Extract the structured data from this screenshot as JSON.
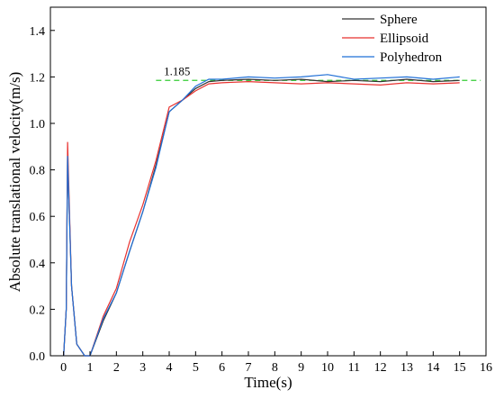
{
  "chart_data": {
    "type": "line",
    "xlabel": "Time(s)",
    "ylabel": "Absolute translational velocity(m/s)",
    "xlim": [
      -0.5,
      16
    ],
    "ylim": [
      0,
      1.5
    ],
    "xticks": [
      "0",
      "1",
      "2",
      "3",
      "4",
      "5",
      "6",
      "7",
      "8",
      "9",
      "10",
      "11",
      "12",
      "13",
      "14",
      "15",
      "16"
    ],
    "yticks": [
      "0.0",
      "0.2",
      "0.4",
      "0.6",
      "0.8",
      "1.0",
      "1.2",
      "1.4"
    ],
    "legend_position": "top-right",
    "reference_line": {
      "y": 1.185,
      "label": "1.185",
      "color": "#33cc33",
      "style": "dashed"
    },
    "series": [
      {
        "name": "Sphere",
        "color": "#333333",
        "x": [
          0.0,
          0.1,
          0.15,
          0.3,
          0.5,
          0.8,
          1.0,
          1.5,
          2.0,
          2.5,
          3.0,
          3.5,
          4.0,
          4.5,
          5.0,
          5.5,
          6.0,
          7.0,
          8.0,
          9.0,
          10.0,
          11.0,
          12.0,
          13.0,
          14.0,
          15.0
        ],
        "y": [
          0.0,
          0.2,
          0.86,
          0.3,
          0.05,
          0.0,
          0.0,
          0.15,
          0.27,
          0.45,
          0.62,
          0.82,
          1.05,
          1.1,
          1.15,
          1.18,
          1.185,
          1.19,
          1.185,
          1.19,
          1.18,
          1.185,
          1.18,
          1.19,
          1.18,
          1.185
        ]
      },
      {
        "name": "Ellipsoid",
        "color": "#e8312f",
        "x": [
          0.0,
          0.1,
          0.15,
          0.3,
          0.5,
          0.8,
          1.0,
          1.5,
          2.0,
          2.5,
          3.0,
          3.5,
          4.0,
          4.5,
          5.0,
          5.5,
          6.0,
          7.0,
          8.0,
          9.0,
          10.0,
          11.0,
          12.0,
          13.0,
          14.0,
          15.0
        ],
        "y": [
          0.0,
          0.2,
          0.92,
          0.3,
          0.05,
          0.0,
          0.0,
          0.17,
          0.29,
          0.49,
          0.65,
          0.84,
          1.07,
          1.1,
          1.14,
          1.17,
          1.175,
          1.18,
          1.175,
          1.17,
          1.175,
          1.17,
          1.165,
          1.175,
          1.17,
          1.175
        ]
      },
      {
        "name": "Polyhedron",
        "color": "#1f6fd6",
        "x": [
          0.0,
          0.1,
          0.15,
          0.3,
          0.5,
          0.8,
          1.0,
          1.5,
          2.0,
          2.5,
          3.0,
          3.5,
          4.0,
          4.5,
          5.0,
          5.5,
          6.0,
          7.0,
          8.0,
          9.0,
          10.0,
          11.0,
          12.0,
          13.0,
          14.0,
          15.0
        ],
        "y": [
          0.0,
          0.2,
          0.86,
          0.3,
          0.05,
          0.0,
          0.0,
          0.16,
          0.27,
          0.45,
          0.62,
          0.81,
          1.05,
          1.1,
          1.16,
          1.19,
          1.19,
          1.2,
          1.195,
          1.2,
          1.21,
          1.19,
          1.195,
          1.2,
          1.19,
          1.2
        ]
      }
    ]
  }
}
